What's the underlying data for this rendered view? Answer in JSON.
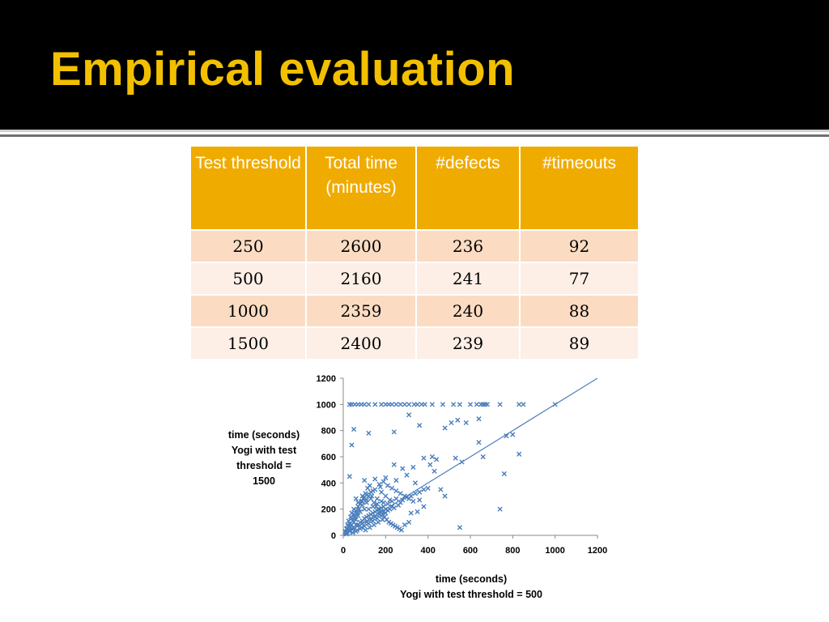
{
  "slide": {
    "title": "Empirical evaluation"
  },
  "table": {
    "headers": [
      "Test threshold",
      "Total time (minutes)",
      "#defects",
      "#timeouts"
    ],
    "rows": [
      [
        "250",
        "2600",
        "236",
        "92"
      ],
      [
        "500",
        "2160",
        "241",
        "77"
      ],
      [
        "1000",
        "2359",
        "240",
        "88"
      ],
      [
        "1500",
        "2400",
        "239",
        "89"
      ]
    ]
  },
  "colors": {
    "title": "#f2c000",
    "header": "#f0ab00",
    "row_odd": "#fbdcc3",
    "row_even": "#fdefe6",
    "points": "#4a7ebb"
  },
  "chart_data": {
    "type": "scatter",
    "ylabel_lines": [
      "time (seconds)",
      "Yogi with test",
      "threshold =",
      "1500"
    ],
    "xlabel_lines": [
      "time (seconds)",
      "Yogi with test threshold = 500"
    ],
    "xlim": [
      0,
      1200
    ],
    "ylim": [
      0,
      1200
    ],
    "xticks": [
      "0",
      "200",
      "400",
      "600",
      "800",
      "1000",
      "1200"
    ],
    "yticks": [
      "0",
      "200",
      "400",
      "600",
      "800",
      "1000",
      "1200"
    ],
    "grid": false,
    "legend": "none",
    "reference_line": [
      [
        0,
        0
      ],
      [
        1200,
        1200
      ]
    ],
    "marker": "x",
    "series": [
      {
        "points": [
          [
            30,
            1000
          ],
          [
            40,
            1000
          ],
          [
            55,
            1000
          ],
          [
            70,
            1000
          ],
          [
            85,
            1000
          ],
          [
            100,
            1000
          ],
          [
            120,
            1000
          ],
          [
            150,
            1000
          ],
          [
            180,
            1000
          ],
          [
            200,
            1000
          ],
          [
            215,
            1000
          ],
          [
            230,
            1000
          ],
          [
            250,
            1000
          ],
          [
            270,
            1000
          ],
          [
            290,
            1000
          ],
          [
            310,
            1000
          ],
          [
            335,
            1000
          ],
          [
            350,
            1000
          ],
          [
            370,
            1000
          ],
          [
            385,
            1000
          ],
          [
            420,
            1000
          ],
          [
            470,
            1000
          ],
          [
            520,
            1000
          ],
          [
            550,
            1000
          ],
          [
            600,
            1000
          ],
          [
            630,
            1000
          ],
          [
            650,
            1000
          ],
          [
            660,
            1000
          ],
          [
            670,
            1000
          ],
          [
            680,
            1000
          ],
          [
            740,
            1000
          ],
          [
            830,
            1000
          ],
          [
            850,
            1000
          ],
          [
            1000,
            1000
          ],
          [
            50,
            810
          ],
          [
            120,
            780
          ],
          [
            240,
            790
          ],
          [
            310,
            920
          ],
          [
            360,
            840
          ],
          [
            480,
            820
          ],
          [
            510,
            860
          ],
          [
            540,
            880
          ],
          [
            580,
            860
          ],
          [
            640,
            890
          ],
          [
            530,
            590
          ],
          [
            660,
            600
          ],
          [
            640,
            710
          ],
          [
            800,
            770
          ],
          [
            770,
            760
          ],
          [
            830,
            620
          ],
          [
            760,
            470
          ],
          [
            740,
            200
          ],
          [
            550,
            60
          ],
          [
            560,
            560
          ],
          [
            40,
            690
          ],
          [
            30,
            450
          ],
          [
            100,
            420
          ],
          [
            150,
            430
          ],
          [
            240,
            540
          ],
          [
            280,
            510
          ],
          [
            330,
            520
          ],
          [
            380,
            590
          ],
          [
            410,
            540
          ],
          [
            430,
            490
          ],
          [
            300,
            460
          ],
          [
            340,
            400
          ],
          [
            250,
            420
          ],
          [
            200,
            440
          ],
          [
            175,
            370
          ],
          [
            350,
            180
          ],
          [
            320,
            170
          ],
          [
            360,
            270
          ],
          [
            310,
            100
          ],
          [
            290,
            80
          ],
          [
            380,
            220
          ],
          [
            460,
            350
          ],
          [
            420,
            600
          ],
          [
            440,
            580
          ],
          [
            480,
            300
          ],
          [
            200,
            300
          ],
          [
            220,
            270
          ],
          [
            180,
            330
          ],
          [
            160,
            280
          ],
          [
            190,
            250
          ],
          [
            230,
            220
          ],
          [
            140,
            340
          ],
          [
            120,
            300
          ],
          [
            110,
            250
          ],
          [
            90,
            230
          ],
          [
            100,
            200
          ],
          [
            80,
            180
          ],
          [
            70,
            150
          ],
          [
            60,
            120
          ],
          [
            50,
            100
          ],
          [
            40,
            80
          ],
          [
            35,
            60
          ],
          [
            30,
            40
          ],
          [
            20,
            20
          ],
          [
            15,
            10
          ],
          [
            10,
            30
          ],
          [
            25,
            70
          ],
          [
            45,
            110
          ],
          [
            55,
            140
          ],
          [
            65,
            170
          ],
          [
            75,
            200
          ],
          [
            85,
            260
          ],
          [
            95,
            280
          ],
          [
            105,
            320
          ],
          [
            115,
            360
          ],
          [
            125,
            380
          ],
          [
            135,
            300
          ],
          [
            145,
            250
          ],
          [
            155,
            220
          ],
          [
            165,
            200
          ],
          [
            175,
            180
          ],
          [
            185,
            160
          ],
          [
            195,
            140
          ],
          [
            205,
            120
          ],
          [
            215,
            100
          ],
          [
            225,
            90
          ],
          [
            235,
            80
          ],
          [
            245,
            70
          ],
          [
            255,
            60
          ],
          [
            265,
            50
          ],
          [
            275,
            40
          ],
          [
            60,
            30
          ],
          [
            80,
            50
          ],
          [
            100,
            70
          ],
          [
            120,
            90
          ],
          [
            140,
            110
          ],
          [
            160,
            130
          ],
          [
            180,
            150
          ],
          [
            200,
            170
          ],
          [
            210,
            190
          ],
          [
            220,
            200
          ],
          [
            240,
            210
          ],
          [
            260,
            230
          ],
          [
            270,
            250
          ],
          [
            280,
            270
          ],
          [
            300,
            290
          ],
          [
            320,
            300
          ],
          [
            340,
            320
          ],
          [
            360,
            330
          ],
          [
            380,
            350
          ],
          [
            400,
            360
          ],
          [
            20,
            50
          ],
          [
            30,
            90
          ],
          [
            40,
            130
          ],
          [
            50,
            160
          ],
          [
            60,
            190
          ],
          [
            70,
            220
          ],
          [
            80,
            240
          ],
          [
            90,
            260
          ],
          [
            100,
            290
          ],
          [
            110,
            310
          ],
          [
            130,
            330
          ],
          [
            150,
            350
          ],
          [
            170,
            390
          ],
          [
            190,
            410
          ],
          [
            210,
            380
          ],
          [
            230,
            360
          ],
          [
            250,
            340
          ],
          [
            270,
            320
          ],
          [
            290,
            300
          ],
          [
            310,
            280
          ],
          [
            330,
            260
          ],
          [
            70,
            80
          ],
          [
            90,
            110
          ],
          [
            110,
            140
          ],
          [
            130,
            160
          ],
          [
            150,
            180
          ],
          [
            170,
            200
          ],
          [
            190,
            220
          ],
          [
            210,
            240
          ],
          [
            230,
            260
          ],
          [
            250,
            280
          ],
          [
            200,
            200
          ],
          [
            180,
            210
          ],
          [
            160,
            190
          ],
          [
            140,
            170
          ],
          [
            120,
            150
          ],
          [
            100,
            130
          ],
          [
            80,
            100
          ],
          [
            60,
            80
          ],
          [
            40,
            50
          ],
          [
            30,
            30
          ],
          [
            50,
            60
          ],
          [
            90,
            90
          ],
          [
            110,
            100
          ],
          [
            130,
            120
          ],
          [
            150,
            140
          ],
          [
            170,
            160
          ],
          [
            190,
            180
          ],
          [
            45,
            20
          ],
          [
            65,
            40
          ],
          [
            85,
            60
          ],
          [
            105,
            40
          ],
          [
            125,
            60
          ],
          [
            145,
            80
          ],
          [
            165,
            100
          ],
          [
            185,
            120
          ],
          [
            120,
            200
          ],
          [
            140,
            220
          ],
          [
            160,
            240
          ],
          [
            180,
            260
          ],
          [
            130,
            280
          ],
          [
            110,
            270
          ],
          [
            90,
            300
          ],
          [
            70,
            250
          ],
          [
            60,
            280
          ],
          [
            50,
            200
          ],
          [
            40,
            170
          ],
          [
            35,
            140
          ],
          [
            25,
            110
          ],
          [
            20,
            80
          ],
          [
            15,
            50
          ],
          [
            12,
            20
          ]
        ]
      }
    ]
  }
}
